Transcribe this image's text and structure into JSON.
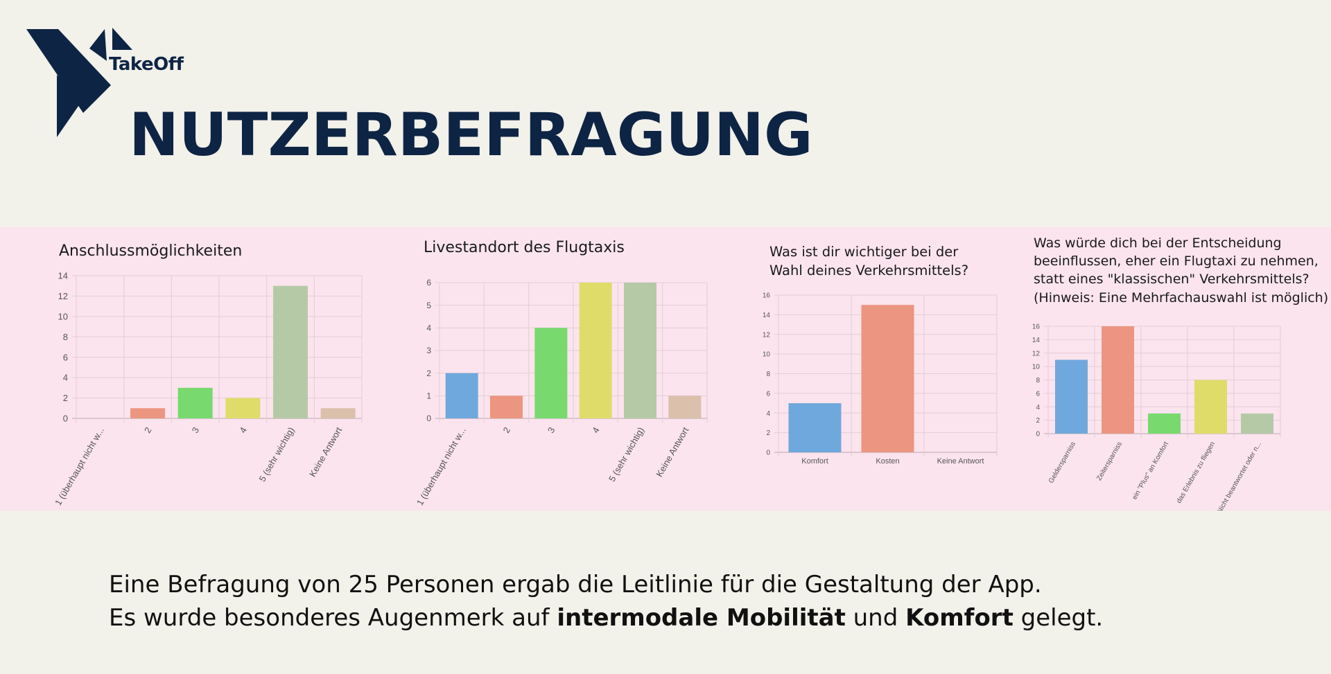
{
  "header": {
    "brand": "TakeOff",
    "title": "NUTZERBEFRAGUNG"
  },
  "footer": {
    "line1": "Eine Befragung von 25 Personen ergab die Leitlinie für die Gestaltung der App.",
    "line2_a": "Es wurde besonderes Augenmerk auf ",
    "line2_b": "intermodale Mobilität",
    "line2_c": " und ",
    "line2_d": "Komfort",
    "line2_e": " gelegt."
  },
  "colors": {
    "navy": "#0e2444",
    "band": "#fbe4ee",
    "background": "#f2f1ea"
  },
  "chart_data": [
    {
      "type": "bar",
      "title_lines": [
        "Anschlussmöglichkeiten"
      ],
      "categories": [
        "1 (überhaupt nicht w...",
        "2",
        "3",
        "4",
        "5 (sehr wichtig)",
        "Keine Antwort"
      ],
      "values": [
        0,
        1,
        3,
        2,
        13,
        1
      ],
      "colors": [
        "#6fa8dc",
        "#ec9580",
        "#78d96e",
        "#e0dc6a",
        "#b5c9a6",
        "#dbc0ab"
      ],
      "ylim": [
        0,
        14
      ],
      "yticks": [
        0,
        2,
        4,
        6,
        8,
        10,
        12,
        14
      ],
      "xlabel": "",
      "ylabel": "",
      "grid": true
    },
    {
      "type": "bar",
      "title_lines": [
        "Livestandort des Flugtaxis"
      ],
      "categories": [
        "1 (überhaupt nicht w...",
        "2",
        "3",
        "4",
        "5 (sehr wichtig)",
        "Keine Antwort"
      ],
      "values": [
        2,
        1,
        4,
        6,
        6,
        1
      ],
      "colors": [
        "#6fa8dc",
        "#ec9580",
        "#78d96e",
        "#e0dc6a",
        "#b5c9a6",
        "#dbc0ab"
      ],
      "ylim": [
        0,
        6
      ],
      "yticks": [
        0,
        1,
        2,
        3,
        4,
        5,
        6
      ],
      "xlabel": "",
      "ylabel": "",
      "grid": true
    },
    {
      "type": "bar",
      "title_lines": [
        "Was ist dir wichtiger bei der",
        "Wahl deines Verkehrsmittels?"
      ],
      "categories": [
        "Komfort",
        "Kosten",
        "Keine Antwort"
      ],
      "values": [
        5,
        15,
        0
      ],
      "colors": [
        "#6fa8dc",
        "#ec9580",
        "#78d96e"
      ],
      "ylim": [
        0,
        16
      ],
      "yticks": [
        0,
        2,
        4,
        6,
        8,
        10,
        12,
        14,
        16
      ],
      "xlabel": "",
      "ylabel": "",
      "grid": true
    },
    {
      "type": "bar",
      "title_lines": [
        "Was würde dich bei der Entscheidung",
        "beeinflussen, eher ein Flugtaxi zu nehmen,",
        "statt eines \"klassischen\" Verkehrsmittels?",
        "(Hinweis: Eine  Mehrfachauswahl ist möglich)"
      ],
      "categories": [
        "Geldersparniss",
        "Zeitersparniss",
        "ein \"Plus\" an Komfort",
        "das Erlebnis zu fliegen",
        "Nicht beantwortet oder n..."
      ],
      "values": [
        11,
        16,
        3,
        8,
        3
      ],
      "colors": [
        "#6fa8dc",
        "#ec9580",
        "#78d96e",
        "#e0dc6a",
        "#b5c9a6"
      ],
      "ylim": [
        0,
        16
      ],
      "yticks": [
        0,
        2,
        4,
        6,
        8,
        10,
        12,
        14,
        16
      ],
      "xlabel": "",
      "ylabel": "",
      "grid": true
    }
  ]
}
